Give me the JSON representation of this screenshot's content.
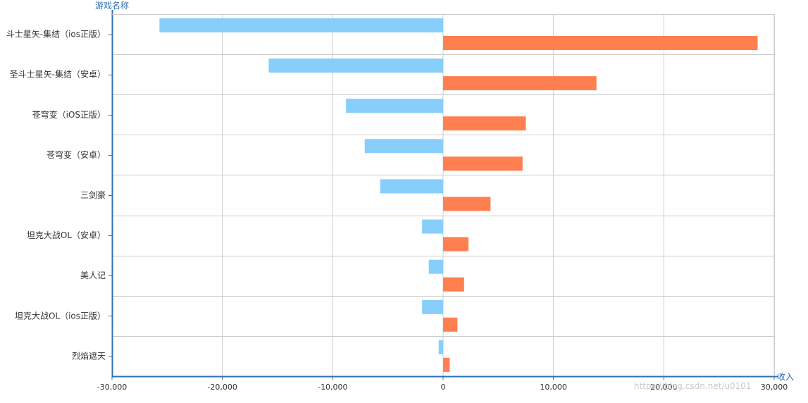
{
  "chart_data": {
    "type": "bar",
    "orientation": "horizontal",
    "ylabel": "游戏名称",
    "xlabel": "收入",
    "xlim": [
      -30000,
      30000
    ],
    "xticks": [
      -30000,
      -20000,
      -10000,
      0,
      10000,
      20000,
      30000
    ],
    "xtick_labels": [
      "-30,000",
      "-20,000",
      "-10,000",
      "0",
      "10,000",
      "20,000",
      "30,000"
    ],
    "grid": true,
    "categories": [
      "斗士星矢-集结（ios正版）",
      "圣斗士星矢-集结（安卓）",
      "苍穹变（iOS正版）",
      "苍穹变（安卓）",
      "三剑豪",
      "坦克大战OL（安卓）",
      "美人记",
      "坦克大战OL（ios正版）",
      "烈焰遮天"
    ],
    "series": [
      {
        "color": "#87cefa",
        "values": [
          -25700,
          -15800,
          -8800,
          -7100,
          -5700,
          -1900,
          -1300,
          -1900,
          -400
        ]
      },
      {
        "color": "#ff7f50",
        "values": [
          28500,
          13900,
          7500,
          7200,
          4300,
          2300,
          1900,
          1300,
          600
        ]
      }
    ]
  },
  "watermark": "https://blog.csdn.net/u0101"
}
